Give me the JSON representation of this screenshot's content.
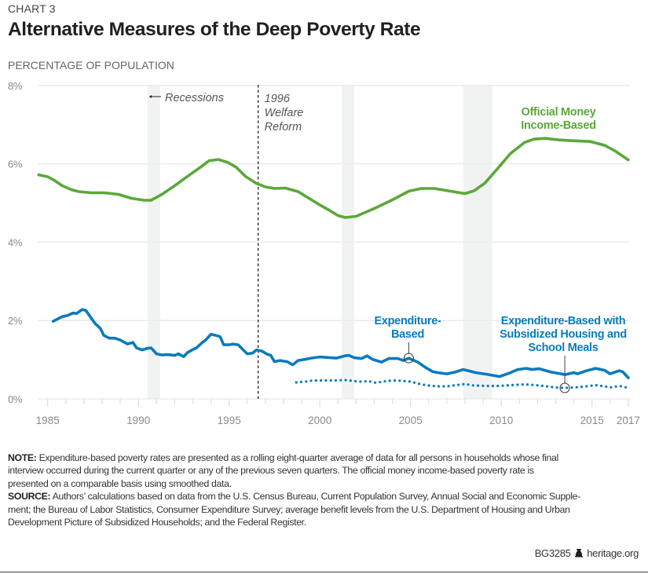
{
  "header": {
    "kicker": "CHART 3",
    "title": "Alternative Measures of the Deep Poverty Rate",
    "units": "PERCENTAGE OF POPULATION"
  },
  "colors": {
    "official": "#5ba83a",
    "expenditure": "#0a7bbd",
    "recession": "#f1f3f2",
    "grid": "#ebebeb",
    "axis_text": "#8a8a8a"
  },
  "chart_data": {
    "type": "line",
    "title": "Alternative Measures of the Deep Poverty Rate",
    "ylabel": "PERCENTAGE OF POPULATION",
    "xlim": [
      1984.5,
      2017.1
    ],
    "ylim": [
      0,
      8
    ],
    "grid": true,
    "y_ticks": [
      0,
      2,
      4,
      6,
      8
    ],
    "y_tick_labels": [
      "0%",
      "2%",
      "4%",
      "6%",
      "8%"
    ],
    "x_ticks": [
      1985,
      1990,
      1995,
      2000,
      2005,
      2010,
      2015,
      2017
    ],
    "x_tick_labels": [
      "1985",
      "1990",
      "1995",
      "2000",
      "2005",
      "2010",
      "2015",
      "2017"
    ],
    "recessions": [
      [
        1990.5,
        1991.2
      ],
      [
        2001.2,
        2001.9
      ],
      [
        2007.9,
        2009.5
      ]
    ],
    "recessions_label": "Recessions",
    "welfare_reform": {
      "x": 1996.6,
      "label_lines": [
        "1996",
        "Welfare",
        "Reform"
      ]
    },
    "series": [
      {
        "name": "Official Money Income-Based",
        "label_lines": [
          "Official Money",
          "Income-Based"
        ],
        "style": "solid",
        "color": "#5ba83a",
        "x": [
          1984.5,
          1985.0,
          1985.4,
          1985.8,
          1986.3,
          1986.7,
          1987.4,
          1988.1,
          1988.9,
          1989.6,
          1990.3,
          1990.7,
          1991.3,
          1992.0,
          1992.8,
          1993.5,
          1993.9,
          1994.4,
          1994.9,
          1995.4,
          1995.9,
          1996.5,
          1997.0,
          1997.5,
          1998.1,
          1998.8,
          1999.4,
          2000.0,
          2000.5,
          2001.0,
          2001.4,
          2002.0,
          2003.1,
          2004.0,
          2004.9,
          2005.6,
          2006.3,
          2007.2,
          2008.0,
          2008.5,
          2009.1,
          2009.8,
          2010.5,
          2011.3,
          2011.8,
          2012.4,
          2013.2,
          2013.9,
          2014.9,
          2015.7,
          2016.3,
          2017.0
        ],
        "y": [
          5.72,
          5.67,
          5.57,
          5.44,
          5.34,
          5.29,
          5.26,
          5.26,
          5.22,
          5.12,
          5.07,
          5.07,
          5.22,
          5.44,
          5.71,
          5.94,
          6.08,
          6.11,
          6.04,
          5.91,
          5.68,
          5.5,
          5.41,
          5.37,
          5.38,
          5.29,
          5.12,
          4.95,
          4.82,
          4.68,
          4.63,
          4.66,
          4.88,
          5.08,
          5.3,
          5.37,
          5.37,
          5.3,
          5.24,
          5.31,
          5.51,
          5.88,
          6.26,
          6.55,
          6.63,
          6.65,
          6.61,
          6.59,
          6.57,
          6.47,
          6.32,
          6.1
        ]
      },
      {
        "name": "Expenditure-Based",
        "label_lines": [
          "Expenditure-",
          "Based"
        ],
        "style": "solid",
        "color": "#0a7bbd",
        "x": [
          1985.3,
          1985.8,
          1986.1,
          1986.4,
          1986.6,
          1986.9,
          1987.1,
          1987.6,
          1987.9,
          1988.1,
          1988.4,
          1988.7,
          1989.0,
          1989.4,
          1989.7,
          1989.9,
          1990.2,
          1990.5,
          1990.7,
          1991.0,
          1991.3,
          1991.6,
          1992.0,
          1992.2,
          1992.5,
          1992.7,
          1993.0,
          1993.2,
          1993.5,
          1993.7,
          1994.0,
          1994.2,
          1994.5,
          1994.7,
          1995.0,
          1995.2,
          1995.5,
          1995.8,
          1996.0,
          1996.3,
          1996.5,
          1996.8,
          1997.1,
          1997.3,
          1997.5,
          1997.8,
          1998.2,
          1998.5,
          1998.8,
          1999.2,
          1999.5,
          2000.0,
          2000.9,
          2001.4,
          2001.6,
          2001.9,
          2002.3,
          2002.6,
          2002.9,
          2003.4,
          2003.8,
          2004.3,
          2004.6,
          2004.9,
          2005.4,
          2005.8,
          2006.2,
          2006.5,
          2007.0,
          2007.5,
          2007.9,
          2008.1,
          2008.6,
          2009.2,
          2009.9,
          2010.4,
          2010.9,
          2011.4,
          2011.7,
          2012.1,
          2012.7,
          2013.3,
          2013.5,
          2014.0,
          2014.2,
          2014.7,
          2015.2,
          2015.7,
          2016.0,
          2016.5,
          2016.7,
          2017.0
        ],
        "y": [
          1.98,
          2.1,
          2.13,
          2.19,
          2.18,
          2.28,
          2.26,
          1.93,
          1.8,
          1.62,
          1.55,
          1.55,
          1.5,
          1.4,
          1.44,
          1.3,
          1.25,
          1.29,
          1.3,
          1.15,
          1.12,
          1.13,
          1.11,
          1.15,
          1.08,
          1.18,
          1.26,
          1.3,
          1.43,
          1.5,
          1.65,
          1.63,
          1.59,
          1.38,
          1.38,
          1.4,
          1.38,
          1.24,
          1.15,
          1.17,
          1.25,
          1.22,
          1.14,
          1.11,
          0.95,
          0.98,
          0.95,
          0.87,
          0.98,
          1.01,
          1.04,
          1.07,
          1.04,
          1.1,
          1.11,
          1.05,
          1.03,
          1.1,
          1.01,
          0.94,
          1.03,
          1.03,
          0.98,
          1.04,
          0.94,
          0.81,
          0.7,
          0.67,
          0.64,
          0.69,
          0.75,
          0.73,
          0.67,
          0.63,
          0.57,
          0.65,
          0.75,
          0.78,
          0.75,
          0.77,
          0.69,
          0.64,
          0.62,
          0.67,
          0.64,
          0.72,
          0.78,
          0.73,
          0.64,
          0.72,
          0.69,
          0.54
        ],
        "marker": {
          "x": 2004.9,
          "y": 1.04
        }
      },
      {
        "name": "Expenditure-Based with Subsidized Housing and School Meals",
        "label_lines": [
          "Expenditure-Based with",
          "Subsidized Housing and",
          "School Meals"
        ],
        "style": "dotted",
        "color": "#0a7bbd",
        "x": [
          1998.7,
          1999.2,
          1999.6,
          2000.2,
          2000.8,
          2001.4,
          2001.8,
          2002.2,
          2002.7,
          2003.1,
          2003.6,
          2004.0,
          2004.5,
          2005.0,
          2005.5,
          2006.0,
          2006.5,
          2007.0,
          2007.5,
          2008.0,
          2008.5,
          2009.2,
          2009.9,
          2010.5,
          2011.3,
          2011.9,
          2012.5,
          2013.0,
          2013.5,
          2014.0,
          2014.5,
          2015.2,
          2015.7,
          2016.0,
          2016.5,
          2017.0
        ],
        "y": [
          0.42,
          0.44,
          0.47,
          0.47,
          0.47,
          0.48,
          0.46,
          0.44,
          0.45,
          0.41,
          0.45,
          0.47,
          0.46,
          0.44,
          0.38,
          0.34,
          0.32,
          0.32,
          0.35,
          0.38,
          0.34,
          0.33,
          0.33,
          0.35,
          0.37,
          0.35,
          0.32,
          0.29,
          0.28,
          0.29,
          0.31,
          0.35,
          0.32,
          0.29,
          0.33,
          0.28
        ],
        "marker": {
          "x": 2013.5,
          "y": 0.28
        }
      }
    ]
  },
  "notes": {
    "note_label": "NOTE:",
    "note_lines": [
      " Expenditure-based poverty rates are presented as a rolling eight-quarter average of data for all persons in households whose final",
      "interview occurred during the current quarter or any of the previous seven quarters. The official money income-based poverty rate is",
      "presented on a comparable basis using smoothed data."
    ],
    "source_label": "SOURCE:",
    "source_lines": [
      " Authors’ calculations based on data from the U.S. Census Bureau, Current Population Survey, Annual Social and Economic Supple-",
      "ment; the Bureau of Labor Statistics, Consumer Expenditure Survey; average benefit levels from the U.S. Department of Housing and Urban",
      "Development Picture of Subsidized Households; and the Federal Register."
    ]
  },
  "footer": {
    "code": "BG3285",
    "logo_icon": "liberty-bell-icon",
    "site": "heritage.org"
  }
}
